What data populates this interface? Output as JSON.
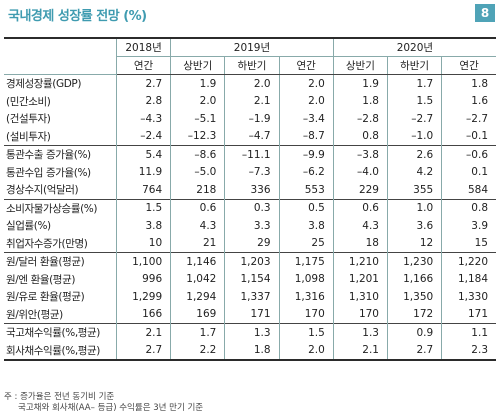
{
  "title": "국내경제 성장률 전망 (%)",
  "page_badge": "8",
  "header": {
    "years": [
      "2018년",
      "2019년",
      "2020년"
    ],
    "subs": [
      "연간",
      "상반기",
      "하반기",
      "연간",
      "상반기",
      "하반기",
      "연간"
    ]
  },
  "rows": [
    {
      "label": "경제성장률(GDP)",
      "values": [
        "2.7",
        "1.9",
        "2.0",
        "2.0",
        "1.9",
        "1.7",
        "1.8"
      ]
    },
    {
      "label": "(민간소비)",
      "values": [
        "2.8",
        "2.0",
        "2.1",
        "2.0",
        "1.8",
        "1.5",
        "1.6"
      ]
    },
    {
      "label": "(건설투자)",
      "values": [
        "–4.3",
        "–5.1",
        "–1.9",
        "–3.4",
        "–2.8",
        "–2.7",
        "–2.7"
      ]
    },
    {
      "label": "(설비투자)",
      "values": [
        "–2.4",
        "–12.3",
        "–4.7",
        "–8.7",
        "0.8",
        "–1.0",
        "–0.1"
      ]
    },
    {
      "label": "통관수출 증가율(%)",
      "values": [
        "5.4",
        "–8.6",
        "–11.1",
        "–9.9",
        "–3.8",
        "2.6",
        "–0.6"
      ]
    },
    {
      "label": "통관수입 증가율(%)",
      "values": [
        "11.9",
        "–5.0",
        "–7.3",
        "–6.2",
        "–4.0",
        "4.2",
        "0.1"
      ]
    },
    {
      "label": "경상수지(억달러)",
      "values": [
        "764",
        "218",
        "336",
        "553",
        "229",
        "355",
        "584"
      ]
    },
    {
      "label": "소비자물가상승률(%)",
      "values": [
        "1.5",
        "0.6",
        "0.3",
        "0.5",
        "0.6",
        "1.0",
        "0.8"
      ]
    },
    {
      "label": "실업률(%)",
      "values": [
        "3.8",
        "4.3",
        "3.3",
        "3.8",
        "4.3",
        "3.6",
        "3.9"
      ]
    },
    {
      "label": "취업자수증가(만명)",
      "values": [
        "10",
        "21",
        "29",
        "25",
        "18",
        "12",
        "15"
      ]
    },
    {
      "label": "원/달러 환율(평균)",
      "values": [
        "1,100",
        "1,146",
        "1,203",
        "1,175",
        "1,210",
        "1,230",
        "1,220"
      ]
    },
    {
      "label": "원/엔 환율(평균)",
      "values": [
        "996",
        "1,042",
        "1,154",
        "1,098",
        "1,201",
        "1,166",
        "1,184"
      ]
    },
    {
      "label": "원/유로 환율(평균)",
      "values": [
        "1,299",
        "1,294",
        "1,337",
        "1,316",
        "1,310",
        "1,350",
        "1,330"
      ]
    },
    {
      "label": "원/위안(평균)",
      "values": [
        "166",
        "169",
        "171",
        "170",
        "170",
        "172",
        "171"
      ]
    },
    {
      "label": "국고채수익률(%,평균)",
      "values": [
        "2.1",
        "1.7",
        "1.3",
        "1.5",
        "1.3",
        "0.9",
        "1.1"
      ]
    },
    {
      "label": "회사채수익률(%,평균)",
      "values": [
        "2.7",
        "2.2",
        "1.8",
        "2.0",
        "2.1",
        "2.7",
        "2.3"
      ]
    }
  ],
  "notes": [
    "주 : 증가율은 전년 동기비 기준",
    "국고채와 회사채(AA– 등급) 수익률은 3년 만기 기준"
  ]
}
